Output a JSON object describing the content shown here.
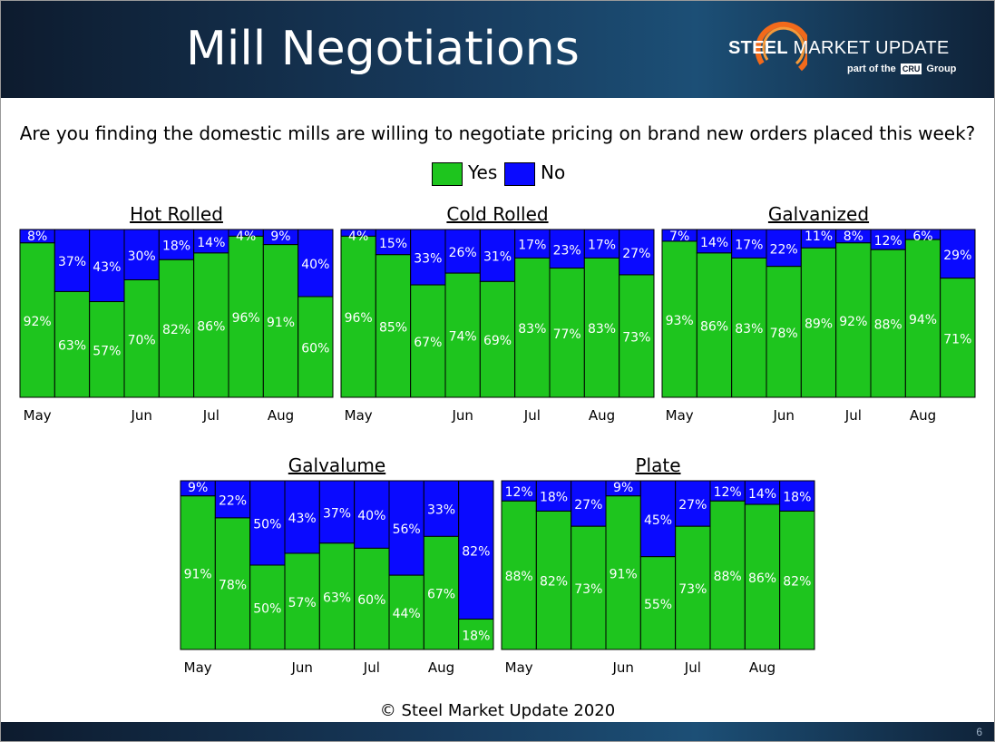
{
  "header": {
    "title": "Mill Negotiations",
    "brand_bold": "STEEL",
    "brand_rest": "MARKET UPDATE",
    "tagline_pre": "part of the",
    "tagline_cru": "CRU",
    "tagline_post": "Group"
  },
  "question": "Are you finding the domestic mills are willing to negotiate pricing on brand new orders placed this week?",
  "legend": {
    "yes": "Yes",
    "no": "No"
  },
  "colors": {
    "yes": "#1ec51e",
    "no": "#0a0aff",
    "header_bg": "#173a5c"
  },
  "footer": {
    "copyright": "© Steel Market Update 2020",
    "page_number": "6"
  },
  "chart_data": [
    {
      "type": "bar",
      "stacked": true,
      "title": "Hot Rolled",
      "series": [
        {
          "name": "Yes",
          "values": [
            92,
            63,
            57,
            70,
            82,
            86,
            96,
            91,
            60
          ]
        },
        {
          "name": "No",
          "values": [
            8,
            37,
            43,
            30,
            18,
            14,
            4,
            9,
            40
          ]
        }
      ],
      "x_tick_labels": [
        {
          "label": "May",
          "bar_index": 0
        },
        {
          "label": "Jun",
          "bar_index": 3
        },
        {
          "label": "Jul",
          "bar_index": 5
        },
        {
          "label": "Aug",
          "bar_index": 7
        }
      ],
      "ylim": [
        0,
        100
      ]
    },
    {
      "type": "bar",
      "stacked": true,
      "title": "Cold Rolled",
      "series": [
        {
          "name": "Yes",
          "values": [
            96,
            85,
            67,
            74,
            69,
            83,
            77,
            83,
            73
          ]
        },
        {
          "name": "No",
          "values": [
            4,
            15,
            33,
            26,
            31,
            17,
            23,
            17,
            27
          ]
        }
      ],
      "x_tick_labels": [
        {
          "label": "May",
          "bar_index": 0
        },
        {
          "label": "Jun",
          "bar_index": 3
        },
        {
          "label": "Jul",
          "bar_index": 5
        },
        {
          "label": "Aug",
          "bar_index": 7
        }
      ],
      "ylim": [
        0,
        100
      ]
    },
    {
      "type": "bar",
      "stacked": true,
      "title": "Galvanized",
      "series": [
        {
          "name": "Yes",
          "values": [
            93,
            86,
            83,
            78,
            89,
            92,
            88,
            94,
            71
          ]
        },
        {
          "name": "No",
          "values": [
            7,
            14,
            17,
            22,
            11,
            8,
            12,
            6,
            29
          ]
        }
      ],
      "x_tick_labels": [
        {
          "label": "May",
          "bar_index": 0
        },
        {
          "label": "Jun",
          "bar_index": 3
        },
        {
          "label": "Jul",
          "bar_index": 5
        },
        {
          "label": "Aug",
          "bar_index": 7
        }
      ],
      "ylim": [
        0,
        100
      ]
    },
    {
      "type": "bar",
      "stacked": true,
      "title": "Galvalume",
      "series": [
        {
          "name": "Yes",
          "values": [
            91,
            78,
            50,
            57,
            63,
            60,
            44,
            67,
            18
          ]
        },
        {
          "name": "No",
          "values": [
            9,
            22,
            50,
            43,
            37,
            40,
            56,
            33,
            82
          ]
        }
      ],
      "x_tick_labels": [
        {
          "label": "May",
          "bar_index": 0
        },
        {
          "label": "Jun",
          "bar_index": 3
        },
        {
          "label": "Jul",
          "bar_index": 5
        },
        {
          "label": "Aug",
          "bar_index": 7
        }
      ],
      "ylim": [
        0,
        100
      ]
    },
    {
      "type": "bar",
      "stacked": true,
      "title": "Plate",
      "series": [
        {
          "name": "Yes",
          "values": [
            88,
            82,
            73,
            91,
            55,
            73,
            88,
            86,
            82
          ]
        },
        {
          "name": "No",
          "values": [
            12,
            18,
            27,
            9,
            45,
            27,
            12,
            14,
            18
          ]
        }
      ],
      "x_tick_labels": [
        {
          "label": "May",
          "bar_index": 0
        },
        {
          "label": "Jun",
          "bar_index": 3
        },
        {
          "label": "Jul",
          "bar_index": 5
        },
        {
          "label": "Aug",
          "bar_index": 7
        }
      ],
      "ylim": [
        0,
        100
      ]
    }
  ]
}
